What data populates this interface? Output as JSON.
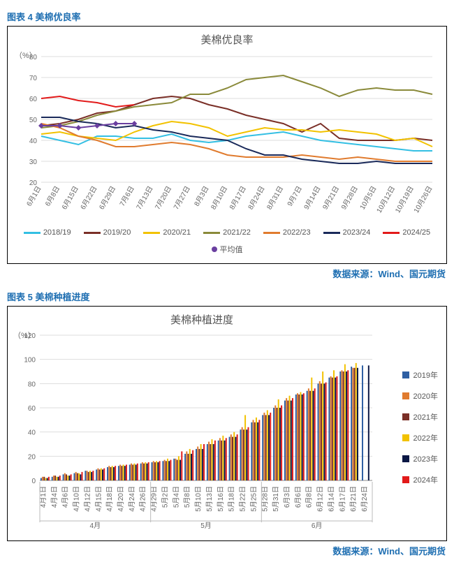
{
  "chart1": {
    "figure_label": "图表 4 美棉优良率",
    "title": "美棉优良率",
    "y_unit": "（%）",
    "ylim": [
      20,
      80
    ],
    "ytick_step": 10,
    "source": "数据来源：Wind、国元期货",
    "x_labels": [
      "6月1日",
      "6月8日",
      "6月15日",
      "6月22日",
      "6月29日",
      "7月6日",
      "7月13日",
      "7月20日",
      "7月27日",
      "8月3日",
      "8月10日",
      "8月17日",
      "8月24日",
      "8月31日",
      "9月7日",
      "9月14日",
      "9月21日",
      "9月28日",
      "10月5日",
      "10月12日",
      "10月19日",
      "10月26日"
    ],
    "series": [
      {
        "name": "2018/19",
        "color": "#33bfe3",
        "width": 2,
        "data": [
          42,
          40,
          38,
          42,
          42,
          41,
          41,
          43,
          40,
          39,
          40,
          42,
          43,
          44,
          42,
          40,
          39,
          38,
          37,
          36,
          35,
          35
        ]
      },
      {
        "name": "2019/20",
        "color": "#7a2f27",
        "width": 2,
        "data": [
          47,
          48,
          50,
          53,
          54,
          57,
          60,
          61,
          60,
          57,
          55,
          52,
          50,
          48,
          44,
          48,
          41,
          40,
          40,
          40,
          41,
          40
        ]
      },
      {
        "name": "2020/21",
        "color": "#f2c200",
        "width": 2,
        "data": [
          43,
          44,
          42,
          41,
          40,
          44,
          47,
          49,
          48,
          46,
          42,
          44,
          46,
          45,
          45,
          44,
          45,
          44,
          43,
          40,
          41,
          37
        ]
      },
      {
        "name": "2021/22",
        "color": "#8a8a3a",
        "width": 2,
        "data": [
          46,
          47,
          49,
          52,
          54,
          56,
          57,
          58,
          62,
          62,
          65,
          69,
          70,
          71,
          68,
          65,
          61,
          64,
          65,
          64,
          64,
          62
        ]
      },
      {
        "name": "2022/23",
        "color": "#e07b2e",
        "width": 2,
        "data": [
          48,
          46,
          42,
          40,
          37,
          37,
          38,
          39,
          38,
          36,
          33,
          32,
          32,
          32,
          33,
          32,
          31,
          32,
          31,
          30,
          30,
          30
        ]
      },
      {
        "name": "2023/24",
        "color": "#1a2a5a",
        "width": 2,
        "data": [
          51,
          51,
          49,
          48,
          46,
          47,
          45,
          44,
          42,
          41,
          40,
          36,
          33,
          33,
          31,
          30,
          29,
          29,
          30,
          29,
          29,
          29
        ]
      },
      {
        "name": "2024/25",
        "color": "#e21a1a",
        "width": 2,
        "data": [
          60,
          61,
          59,
          58,
          56,
          57
        ]
      },
      {
        "name": "平均值",
        "color": "#6a3fa0",
        "width": 2,
        "marker": true,
        "data": [
          47,
          47,
          46,
          47,
          48,
          48
        ]
      }
    ]
  },
  "chart2": {
    "figure_label": "图表 5 美棉种植进度",
    "title": "美棉种植进度",
    "y_unit": "（%）",
    "ylim": [
      0,
      120
    ],
    "ytick_step": 20,
    "source": "数据来源：Wind、国元期货",
    "months": [
      "4月",
      "5月",
      "6月"
    ],
    "x_labels": [
      "4月1日",
      "4月4日",
      "4月6日",
      "4月10日",
      "4月12日",
      "4月15日",
      "4月18日",
      "4月20日",
      "4月24日",
      "4月26日",
      "4月29日",
      "5月2日",
      "5月4日",
      "5月8日",
      "5月10日",
      "5月13日",
      "5月16日",
      "5月18日",
      "5月22日",
      "5月25日",
      "5月28日",
      "5月31日",
      "6月3日",
      "6月6日",
      "6月8日",
      "6月12日",
      "6月14日",
      "6月17日",
      "6月21日",
      "6月24日"
    ],
    "series": [
      {
        "name": "2019年",
        "color": "#2e5fa3"
      },
      {
        "name": "2020年",
        "color": "#e07b2e"
      },
      {
        "name": "2021年",
        "color": "#7a2f27"
      },
      {
        "name": "2022年",
        "color": "#f2c200"
      },
      {
        "name": "2023年",
        "color": "#0a1744"
      },
      {
        "name": "2024年",
        "color": "#e21a1a"
      }
    ],
    "values": [
      [
        2,
        3,
        3,
        2,
        2,
        3
      ],
      [
        3,
        4,
        4,
        3,
        3,
        4
      ],
      [
        5,
        6,
        5,
        4,
        4,
        5
      ],
      [
        6,
        7,
        6,
        6,
        5,
        7
      ],
      [
        8,
        8,
        7,
        8,
        7,
        8
      ],
      [
        9,
        10,
        9,
        10,
        9,
        10
      ],
      [
        11,
        12,
        11,
        12,
        11,
        12
      ],
      [
        12,
        13,
        12,
        13,
        12,
        13
      ],
      [
        13,
        14,
        13,
        14,
        13,
        14
      ],
      [
        14,
        15,
        14,
        15,
        14,
        15
      ],
      [
        15,
        16,
        15,
        16,
        15,
        16
      ],
      [
        16,
        17,
        16,
        18,
        16,
        17
      ],
      [
        18,
        18,
        17,
        20,
        17,
        24
      ],
      [
        22,
        24,
        22,
        26,
        22,
        25
      ],
      [
        26,
        28,
        26,
        30,
        26,
        30
      ],
      [
        30,
        32,
        30,
        34,
        30,
        33
      ],
      [
        33,
        35,
        33,
        37,
        33,
        35
      ],
      [
        36,
        38,
        36,
        40,
        36,
        38
      ],
      [
        42,
        44,
        42,
        54,
        42,
        44
      ],
      [
        48,
        50,
        48,
        52,
        48,
        50
      ],
      [
        54,
        56,
        54,
        58,
        54,
        56
      ],
      [
        60,
        62,
        60,
        67,
        60,
        62
      ],
      [
        66,
        68,
        66,
        70,
        66,
        68
      ],
      [
        71,
        72,
        71,
        73,
        71,
        72
      ],
      [
        74,
        76,
        74,
        85,
        74,
        76
      ],
      [
        80,
        82,
        80,
        90,
        80,
        81
      ],
      [
        85,
        86,
        85,
        91,
        85,
        86
      ],
      [
        90,
        91,
        90,
        96,
        90,
        91
      ],
      [
        94,
        93,
        93,
        97,
        93,
        null
      ],
      [
        95,
        null,
        null,
        null,
        95,
        null
      ]
    ]
  }
}
